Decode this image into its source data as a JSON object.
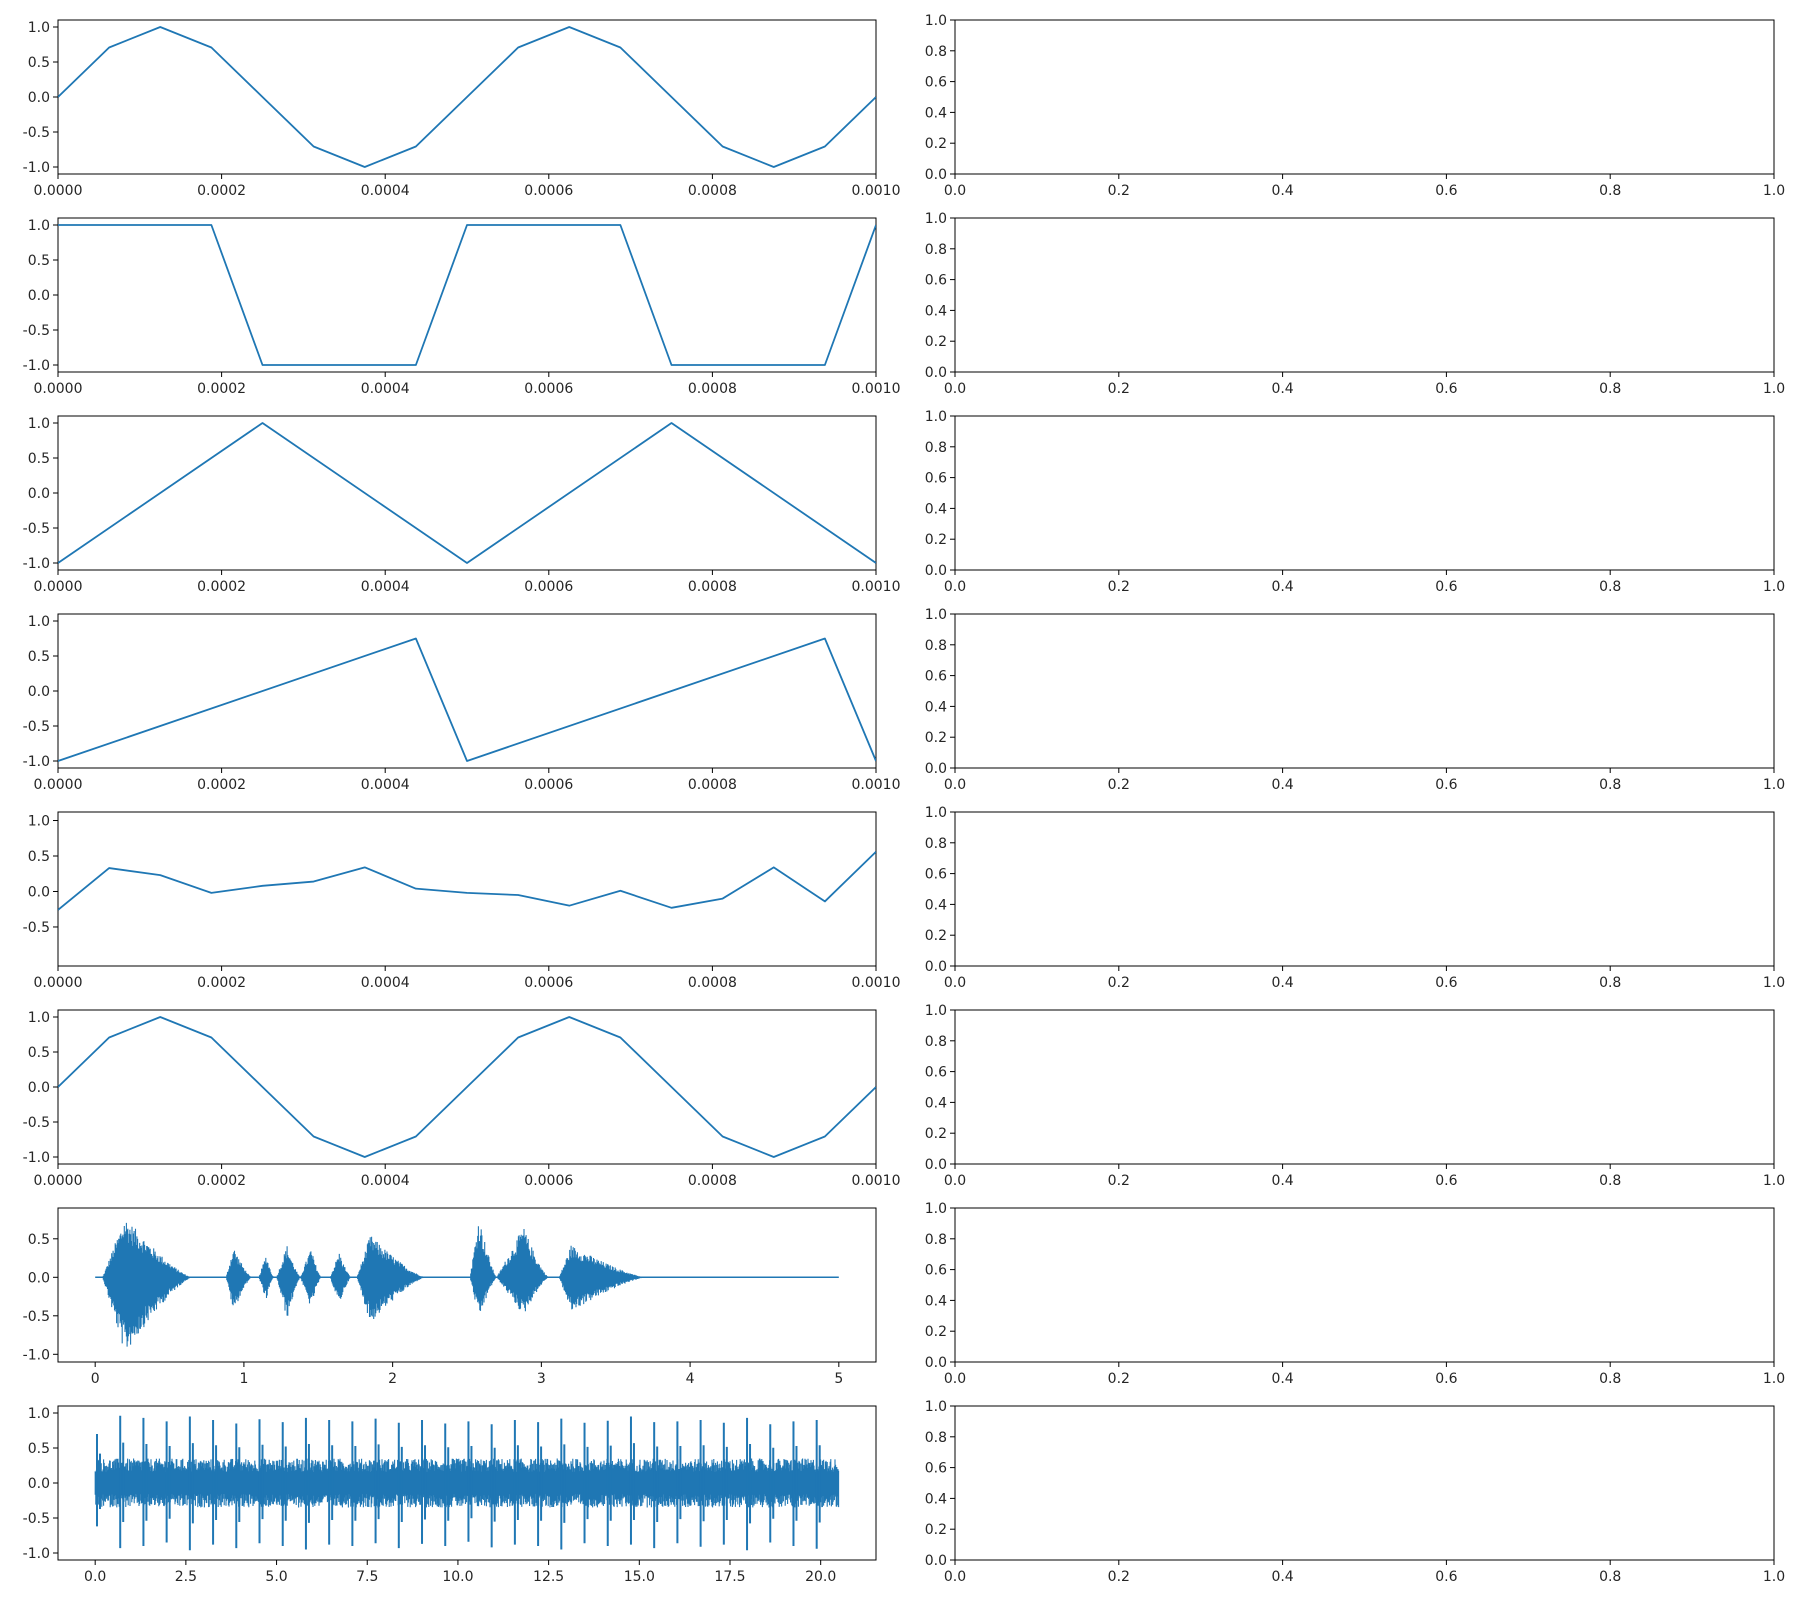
{
  "chart_data": [
    {
      "type": "line",
      "xlim": [
        0,
        0.001
      ],
      "ylim": [
        -1.1,
        1.1
      ],
      "xticks": [
        "0.0000",
        "0.0002",
        "0.0004",
        "0.0006",
        "0.0008",
        "0.0010"
      ],
      "yticks": [
        "-1.0",
        "-0.5",
        "0.0",
        "0.5",
        "1.0"
      ],
      "series": [
        {
          "color": "#1f77b4",
          "x": [
            0,
            6.25e-05,
            0.000125,
            0.0001875,
            0.00025,
            0.0003125,
            0.000375,
            0.0004375,
            0.0005,
            0.0005625,
            0.000625,
            0.0006875,
            0.00075,
            0.0008125,
            0.000875,
            0.0009375,
            0.001
          ],
          "y": [
            0,
            0.707,
            1,
            0.707,
            0,
            -0.707,
            -1,
            -0.707,
            0,
            0.707,
            1,
            0.707,
            0,
            -0.707,
            -1,
            -0.707,
            0
          ]
        }
      ]
    },
    {
      "type": "line",
      "xlim": [
        0,
        0.001
      ],
      "ylim": [
        -1.1,
        1.1
      ],
      "xticks": [
        "0.0000",
        "0.0002",
        "0.0004",
        "0.0006",
        "0.0008",
        "0.0010"
      ],
      "yticks": [
        "-1.0",
        "-0.5",
        "0.0",
        "0.5",
        "1.0"
      ],
      "series": [
        {
          "color": "#1f77b4",
          "x": [
            0,
            6.25e-05,
            0.000125,
            0.0001875,
            0.00025,
            0.0003125,
            0.000375,
            0.0004375,
            0.0005,
            0.0005625,
            0.000625,
            0.0006875,
            0.00075,
            0.0008125,
            0.000875,
            0.0009375,
            0.001
          ],
          "y": [
            1,
            1,
            1,
            1,
            -1,
            -1,
            -1,
            -1,
            1,
            1,
            1,
            1,
            -1,
            -1,
            -1,
            -1,
            1
          ]
        }
      ]
    },
    {
      "type": "line",
      "xlim": [
        0,
        0.001
      ],
      "ylim": [
        -1.1,
        1.1
      ],
      "xticks": [
        "0.0000",
        "0.0002",
        "0.0004",
        "0.0006",
        "0.0008",
        "0.0010"
      ],
      "yticks": [
        "-1.0",
        "-0.5",
        "0.0",
        "0.5",
        "1.0"
      ],
      "series": [
        {
          "color": "#1f77b4",
          "x": [
            0,
            0.00025,
            0.0005,
            0.00075,
            0.001
          ],
          "y": [
            -1,
            1,
            -1,
            1,
            -1
          ]
        }
      ]
    },
    {
      "type": "line",
      "xlim": [
        0,
        0.001
      ],
      "ylim": [
        -1.1,
        1.1
      ],
      "xticks": [
        "0.0000",
        "0.0002",
        "0.0004",
        "0.0006",
        "0.0008",
        "0.0010"
      ],
      "yticks": [
        "-1.0",
        "-0.5",
        "0.0",
        "0.5",
        "1.0"
      ],
      "series": [
        {
          "color": "#1f77b4",
          "x": [
            0,
            0.0004375,
            0.0005,
            0.0009375,
            0.001
          ],
          "y": [
            -1,
            0.75,
            -1,
            0.75,
            -1
          ]
        }
      ]
    },
    {
      "type": "line",
      "xlim": [
        0,
        0.001
      ],
      "ylim": [
        -1.05,
        1.12
      ],
      "xticks": [
        "0.0000",
        "0.0002",
        "0.0004",
        "0.0006",
        "0.0008",
        "0.0010"
      ],
      "yticks": [
        "-0.5",
        "0.0",
        "0.5",
        "1.0"
      ],
      "series": [
        {
          "color": "#1f77b4",
          "x": [
            0,
            6.25e-05,
            0.000125,
            0.0001875,
            0.00025,
            0.0003125,
            0.000375,
            0.0004375,
            0.0005,
            0.0005625,
            0.000625,
            0.0006875,
            0.00075,
            0.0008125,
            0.000875,
            0.0009375,
            0.001
          ],
          "y": [
            -0.26,
            0.33,
            0.23,
            -0.02,
            0.08,
            0.14,
            0.34,
            0.04,
            -0.02,
            -0.05,
            -0.2,
            0.01,
            -0.23,
            -0.1,
            0.34,
            -0.14,
            0.56
          ]
        }
      ]
    },
    {
      "type": "line",
      "xlim": [
        0,
        0.001
      ],
      "ylim": [
        -1.1,
        1.1
      ],
      "xticks": [
        "0.0000",
        "0.0002",
        "0.0004",
        "0.0006",
        "0.0008",
        "0.0010"
      ],
      "yticks": [
        "-1.0",
        "-0.5",
        "0.0",
        "0.5",
        "1.0"
      ],
      "series": [
        {
          "color": "#1f77b4",
          "x": [
            0,
            6.25e-05,
            0.000125,
            0.0001875,
            0.00025,
            0.0003125,
            0.000375,
            0.0004375,
            0.0005,
            0.0005625,
            0.000625,
            0.0006875,
            0.00075,
            0.0008125,
            0.000875,
            0.0009375,
            0.001
          ],
          "y": [
            0,
            0.707,
            1,
            0.707,
            0,
            -0.707,
            -1,
            -0.707,
            0,
            0.707,
            1,
            0.707,
            0,
            -0.707,
            -1,
            -0.707,
            0
          ]
        }
      ]
    },
    {
      "type": "area",
      "xlim": [
        -0.25,
        5.25
      ],
      "ylim": [
        -1.1,
        0.9
      ],
      "xticks": [
        "0",
        "1",
        "2",
        "3",
        "4",
        "5"
      ],
      "yticks": [
        "-1.0",
        "-0.5",
        "0.0",
        "0.5"
      ],
      "envelope": {
        "color": "#1f77b4",
        "x_range": [
          0,
          5
        ],
        "segments": [
          {
            "x0": 0.05,
            "x1": 0.65,
            "pos": 0.79,
            "neg": -1.0,
            "peak_at": 0.2
          },
          {
            "x0": 0.88,
            "x1": 1.05,
            "pos": 0.4,
            "neg": -0.45,
            "peak_at": 0.93
          },
          {
            "x0": 1.1,
            "x1": 1.2,
            "pos": 0.3,
            "neg": -0.3,
            "peak_at": 1.15
          },
          {
            "x0": 1.22,
            "x1": 1.38,
            "pos": 0.42,
            "neg": -0.55,
            "peak_at": 1.29
          },
          {
            "x0": 1.38,
            "x1": 1.52,
            "pos": 0.38,
            "neg": -0.4,
            "peak_at": 1.45
          },
          {
            "x0": 1.58,
            "x1": 1.72,
            "pos": 0.33,
            "neg": -0.36,
            "peak_at": 1.64
          },
          {
            "x0": 1.76,
            "x1": 2.22,
            "pos": 0.55,
            "neg": -0.6,
            "peak_at": 1.85
          },
          {
            "x0": 2.52,
            "x1": 2.7,
            "pos": 0.79,
            "neg": -0.55,
            "peak_at": 2.58
          },
          {
            "x0": 2.7,
            "x1": 3.05,
            "pos": 0.66,
            "neg": -0.5,
            "peak_at": 2.88
          },
          {
            "x0": 3.12,
            "x1": 3.7,
            "pos": 0.42,
            "neg": -0.45,
            "peak_at": 3.2
          }
        ]
      }
    },
    {
      "type": "area",
      "xlim": [
        -1.025,
        21.525
      ],
      "ylim": [
        -1.1,
        1.1
      ],
      "xticks": [
        "0.0",
        "2.5",
        "5.0",
        "7.5",
        "10.0",
        "12.5",
        "15.0",
        "17.5",
        "20.0"
      ],
      "yticks": [
        "-1.0",
        "-0.5",
        "0.0",
        "0.5",
        "1.0"
      ],
      "envelope": {
        "color": "#1f77b4",
        "x_range": [
          0,
          20.5
        ],
        "spike_period": 0.64,
        "spike_pos": [
          0.7,
          0.96,
          0.93,
          0.88,
          0.95,
          0.9,
          0.85,
          0.91,
          0.87,
          0.93,
          0.9,
          0.88,
          0.92,
          0.86,
          0.9,
          0.85,
          0.88,
          0.84,
          0.9,
          0.87,
          0.92,
          0.86,
          0.89,
          0.95,
          0.87,
          0.88,
          0.9,
          0.86,
          0.93,
          0.84,
          0.88,
          0.9,
          0.92
        ],
        "spike_neg": [
          -0.62,
          -0.93,
          -0.9,
          -0.85,
          -0.96,
          -0.88,
          -0.93,
          -0.86,
          -0.9,
          -0.95,
          -0.88,
          -0.9,
          -0.86,
          -0.93,
          -0.87,
          -0.9,
          -0.84,
          -0.92,
          -0.88,
          -0.9,
          -0.95,
          -0.86,
          -0.9,
          -0.88,
          -0.93,
          -0.86,
          -0.91,
          -0.88,
          -0.96,
          -0.85,
          -0.9,
          -0.94,
          -0.9
        ],
        "body_pos": 0.35,
        "body_neg": -0.35
      }
    },
    {
      "type": "line",
      "xlim": [
        0,
        1
      ],
      "ylim": [
        0,
        1
      ],
      "xticks": [
        "0.0",
        "0.2",
        "0.4",
        "0.6",
        "0.8",
        "1.0"
      ],
      "yticks": [
        "0.0",
        "0.2",
        "0.4",
        "0.6",
        "0.8",
        "1.0"
      ],
      "series": []
    },
    {
      "type": "line",
      "xlim": [
        0,
        1
      ],
      "ylim": [
        0,
        1
      ],
      "xticks": [
        "0.0",
        "0.2",
        "0.4",
        "0.6",
        "0.8",
        "1.0"
      ],
      "yticks": [
        "0.0",
        "0.2",
        "0.4",
        "0.6",
        "0.8",
        "1.0"
      ],
      "series": []
    },
    {
      "type": "line",
      "xlim": [
        0,
        1
      ],
      "ylim": [
        0,
        1
      ],
      "xticks": [
        "0.0",
        "0.2",
        "0.4",
        "0.6",
        "0.8",
        "1.0"
      ],
      "yticks": [
        "0.0",
        "0.2",
        "0.4",
        "0.6",
        "0.8",
        "1.0"
      ],
      "series": []
    },
    {
      "type": "line",
      "xlim": [
        0,
        1
      ],
      "ylim": [
        0,
        1
      ],
      "xticks": [
        "0.0",
        "0.2",
        "0.4",
        "0.6",
        "0.8",
        "1.0"
      ],
      "yticks": [
        "0.0",
        "0.2",
        "0.4",
        "0.6",
        "0.8",
        "1.0"
      ],
      "series": []
    },
    {
      "type": "line",
      "xlim": [
        0,
        1
      ],
      "ylim": [
        0,
        1
      ],
      "xticks": [
        "0.0",
        "0.2",
        "0.4",
        "0.6",
        "0.8",
        "1.0"
      ],
      "yticks": [
        "0.0",
        "0.2",
        "0.4",
        "0.6",
        "0.8",
        "1.0"
      ],
      "series": []
    },
    {
      "type": "line",
      "xlim": [
        0,
        1
      ],
      "ylim": [
        0,
        1
      ],
      "xticks": [
        "0.0",
        "0.2",
        "0.4",
        "0.6",
        "0.8",
        "1.0"
      ],
      "yticks": [
        "0.0",
        "0.2",
        "0.4",
        "0.6",
        "0.8",
        "1.0"
      ],
      "series": []
    },
    {
      "type": "line",
      "xlim": [
        0,
        1
      ],
      "ylim": [
        0,
        1
      ],
      "xticks": [
        "0.0",
        "0.2",
        "0.4",
        "0.6",
        "0.8",
        "1.0"
      ],
      "yticks": [
        "0.0",
        "0.2",
        "0.4",
        "0.6",
        "0.8",
        "1.0"
      ],
      "series": []
    },
    {
      "type": "line",
      "xlim": [
        0,
        1
      ],
      "ylim": [
        0,
        1
      ],
      "xticks": [
        "0.0",
        "0.2",
        "0.4",
        "0.6",
        "0.8",
        "1.0"
      ],
      "yticks": [
        "0.0",
        "0.2",
        "0.4",
        "0.6",
        "0.8",
        "1.0"
      ],
      "series": []
    }
  ]
}
